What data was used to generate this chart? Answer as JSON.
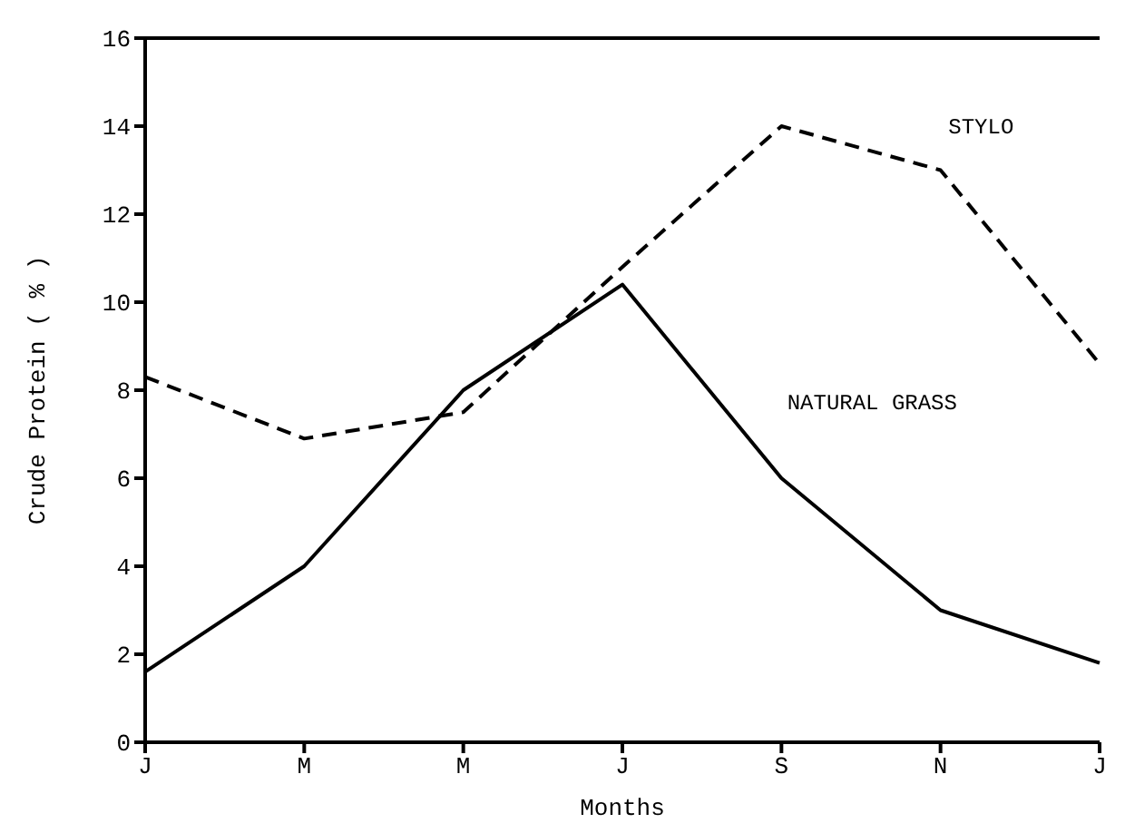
{
  "chart_data": {
    "type": "line",
    "xlabel": "Months",
    "ylabel": "Crude Protein ( % )",
    "categories": [
      "J",
      "M",
      "M",
      "J",
      "S",
      "N",
      "J"
    ],
    "series": [
      {
        "name": "STYLO",
        "color": "#000000",
        "line_style": "dashed",
        "values": [
          8.3,
          6.9,
          7.5,
          10.8,
          14,
          13,
          8.6
        ]
      },
      {
        "name": "NATURAL GRASS",
        "color": "#000000",
        "line_style": "solid",
        "values": [
          1.6,
          4,
          8,
          10.4,
          6,
          3,
          1.8
        ]
      }
    ],
    "ylim": [
      0,
      16
    ],
    "yticks": [
      0,
      2,
      4,
      6,
      8,
      10,
      12,
      14,
      16
    ],
    "grid": false,
    "marker": "none"
  }
}
